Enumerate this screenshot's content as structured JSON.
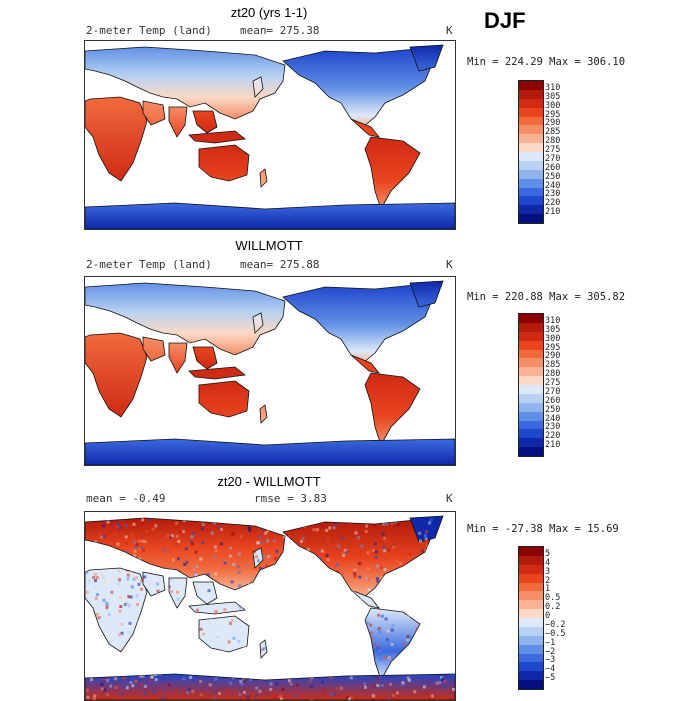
{
  "season": "DJF",
  "panels": [
    {
      "title": "zt20 (yrs 1-1)",
      "left_label": "2-meter Temp (land)",
      "mean_label": "mean= 275.38",
      "unit": "K",
      "minmax": "Min = 224.29 Max = 306.10",
      "colorbar": {
        "ticks": [
          "310",
          "305",
          "300",
          "295",
          "290",
          "285",
          "280",
          "275",
          "270",
          "260",
          "250",
          "240",
          "230",
          "220",
          "210"
        ],
        "colors": [
          "#8b0000",
          "#b21a0c",
          "#cf2b14",
          "#e8451f",
          "#f06a3e",
          "#f58d67",
          "#f8b294",
          "#fbd9c6",
          "#dde9f8",
          "#b8d1f2",
          "#8fb4ec",
          "#6090e6",
          "#3b6ae0",
          "#1f47cc",
          "#0f28aa",
          "#040f7e"
        ]
      },
      "map_palette": "temp"
    },
    {
      "title": "WILLMOTT",
      "left_label": "2-meter Temp (land)",
      "mean_label": "mean= 275.88",
      "unit": "K",
      "minmax": "Min = 220.88 Max = 305.82",
      "colorbar": {
        "ticks": [
          "310",
          "305",
          "300",
          "295",
          "290",
          "285",
          "280",
          "275",
          "270",
          "260",
          "250",
          "240",
          "230",
          "220",
          "210"
        ],
        "colors": [
          "#8b0000",
          "#b21a0c",
          "#cf2b14",
          "#e8451f",
          "#f06a3e",
          "#f58d67",
          "#f8b294",
          "#fbd9c6",
          "#dde9f8",
          "#b8d1f2",
          "#8fb4ec",
          "#6090e6",
          "#3b6ae0",
          "#1f47cc",
          "#0f28aa",
          "#040f7e"
        ]
      },
      "map_palette": "temp"
    },
    {
      "title": "zt20 - WILLMOTT",
      "left_label": "mean =  -0.49",
      "mean_label": "rmse =   3.83",
      "unit": "K",
      "minmax": "Min = -27.38 Max =  15.69",
      "colorbar": {
        "ticks": [
          "5",
          "4",
          "3",
          "2",
          "1",
          "0.5",
          "0.2",
          "0",
          "−0.2",
          "−0.5",
          "−1",
          "−2",
          "−3",
          "−4",
          "−5"
        ],
        "colors": [
          "#8b0000",
          "#b21a0c",
          "#cf2b14",
          "#e8451f",
          "#f06a3e",
          "#f58d67",
          "#f8b294",
          "#fbd9c6",
          "#dde9f8",
          "#b8d1f2",
          "#8fb4ec",
          "#6090e6",
          "#3b6ae0",
          "#1f47cc",
          "#0f28aa",
          "#040f7e"
        ]
      },
      "map_palette": "diff"
    }
  ]
}
